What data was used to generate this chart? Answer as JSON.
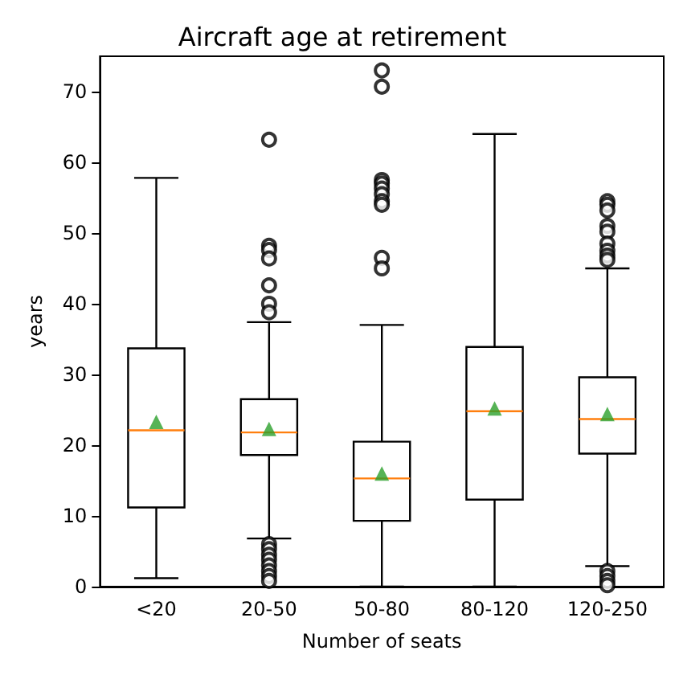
{
  "chart_data": {
    "type": "box",
    "title": "Aircraft age at retirement",
    "xlabel": "Number of seats",
    "ylabel": "years",
    "categories": [
      "<20",
      "20-50",
      "50-80",
      "80-120",
      "120-250"
    ],
    "ylim": [
      0,
      75
    ],
    "yticks": [
      0,
      10,
      20,
      30,
      40,
      50,
      60,
      70
    ],
    "grid": false,
    "color": "#000000",
    "boxes": [
      {
        "low": 1.2,
        "q1": 11.2,
        "median": 22.1,
        "q3": 33.7,
        "high": 57.8,
        "mean": 23.3
      },
      {
        "low": 6.8,
        "q1": 18.6,
        "median": 21.8,
        "q3": 26.5,
        "high": 37.4,
        "mean": 22.3,
        "outliers": [
          63.2,
          48.2,
          47.6,
          46.4,
          42.6,
          40.0,
          38.8,
          6.0,
          5.3,
          4.5,
          3.8,
          3.0,
          2.2,
          1.5,
          0.8
        ]
      },
      {
        "low": 0,
        "q1": 9.3,
        "median": 15.3,
        "q3": 20.5,
        "high": 37.0,
        "mean": 16.0,
        "outliers": [
          73.0,
          70.7,
          57.5,
          57.0,
          56.3,
          55.5,
          54.5,
          54.0,
          46.5,
          45.0
        ]
      },
      {
        "low": 0,
        "q1": 12.3,
        "median": 24.8,
        "q3": 33.9,
        "high": 64.0,
        "mean": 25.2
      },
      {
        "low": 2.9,
        "q1": 18.8,
        "median": 23.7,
        "q3": 29.6,
        "high": 45.0,
        "mean": 24.4,
        "outliers": [
          54.5,
          54.0,
          53.2,
          51.0,
          50.2,
          48.5,
          47.5,
          46.8,
          46.2,
          2.2,
          1.5,
          0.8,
          0.2
        ]
      }
    ]
  }
}
